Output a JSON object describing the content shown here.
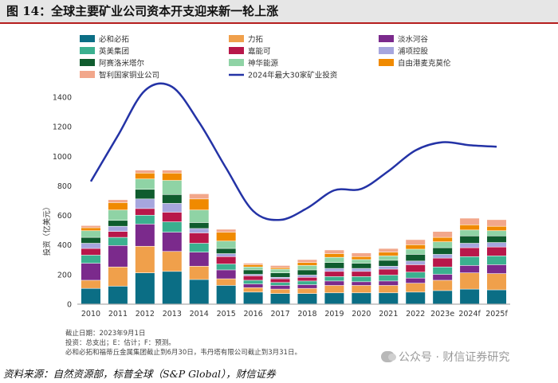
{
  "figure_title": "图 14：全球主要矿业公司资本开支迎来新一轮上涨",
  "chart_data": {
    "type": "bar",
    "stacked": true,
    "ylabel": "投资（亿美元）",
    "ylim": [
      0,
      1400
    ],
    "yticks": [
      0,
      200,
      400,
      600,
      800,
      1000,
      1200,
      1400
    ],
    "categories": [
      "2010",
      "2011",
      "2012",
      "2013",
      "2014",
      "2015",
      "2016",
      "2017",
      "2018",
      "2019",
      "2020",
      "2021",
      "2022",
      "2023e",
      "2024f",
      "2025f"
    ],
    "series": [
      {
        "name": "必和必拓",
        "color": "#0b6e85",
        "values": [
          105,
          120,
          210,
          220,
          165,
          125,
          80,
          70,
          70,
          75,
          75,
          75,
          80,
          90,
          100,
          95
        ]
      },
      {
        "name": "力拓",
        "color": "#f0a04b",
        "values": [
          55,
          130,
          180,
          135,
          90,
          45,
          30,
          30,
          35,
          50,
          50,
          50,
          60,
          70,
          110,
          110
        ]
      },
      {
        "name": "淡水河谷",
        "color": "#7b2a8c",
        "values": [
          115,
          145,
          150,
          130,
          95,
          60,
          25,
          25,
          25,
          30,
          25,
          30,
          35,
          40,
          50,
          60
        ]
      },
      {
        "name": "英美集团",
        "color": "#3bb08f",
        "values": [
          55,
          55,
          60,
          70,
          60,
          40,
          25,
          20,
          25,
          30,
          35,
          40,
          40,
          50,
          60,
          60
        ]
      },
      {
        "name": "嘉能可",
        "color": "#b8174a",
        "values": [
          45,
          40,
          45,
          65,
          70,
          50,
          30,
          25,
          25,
          35,
          35,
          40,
          50,
          60,
          60,
          60
        ]
      },
      {
        "name": "浦项控股",
        "color": "#a6a6de",
        "values": [
          35,
          35,
          65,
          60,
          30,
          20,
          10,
          10,
          15,
          20,
          20,
          20,
          25,
          25,
          30,
          30
        ]
      },
      {
        "name": "阿赛洛米塔尔",
        "color": "#0f5c2e",
        "values": [
          40,
          40,
          65,
          60,
          40,
          35,
          30,
          30,
          35,
          40,
          35,
          40,
          45,
          45,
          50,
          45
        ]
      },
      {
        "name": "神华能源",
        "color": "#8fd3a5",
        "values": [
          45,
          70,
          70,
          95,
          85,
          50,
          20,
          25,
          30,
          35,
          25,
          30,
          35,
          40,
          40,
          35
        ]
      },
      {
        "name": "自由港麦克莫伦",
        "color": "#f08a00",
        "values": [
          20,
          50,
          40,
          50,
          75,
          60,
          15,
          10,
          20,
          25,
          20,
          25,
          30,
          30,
          35,
          30
        ]
      },
      {
        "name": "智利国家铜业公司",
        "color": "#f2a78b",
        "values": [
          15,
          20,
          20,
          20,
          35,
          20,
          10,
          15,
          20,
          25,
          25,
          25,
          35,
          40,
          45,
          45
        ]
      }
    ],
    "line": {
      "name": "2024年最大30家矿业投资",
      "color": "#2433a6",
      "values": [
        830,
        1140,
        1445,
        1470,
        1230,
        920,
        630,
        570,
        650,
        770,
        780,
        900,
        1040,
        1095,
        1075,
        1065
      ]
    }
  },
  "notes": [
    "截止日期：2023年9月1日",
    "投资：总支出；E：估计；F：预测。",
    "必和必拓和福蒂丘金属集团截止到6月30日，韦丹塔有限公司截止到3月31日。"
  ],
  "source": "资料来源：自然资源部，标普全球（S&P Global），财信证券",
  "watermark": "公众号 · 财信证券研究"
}
